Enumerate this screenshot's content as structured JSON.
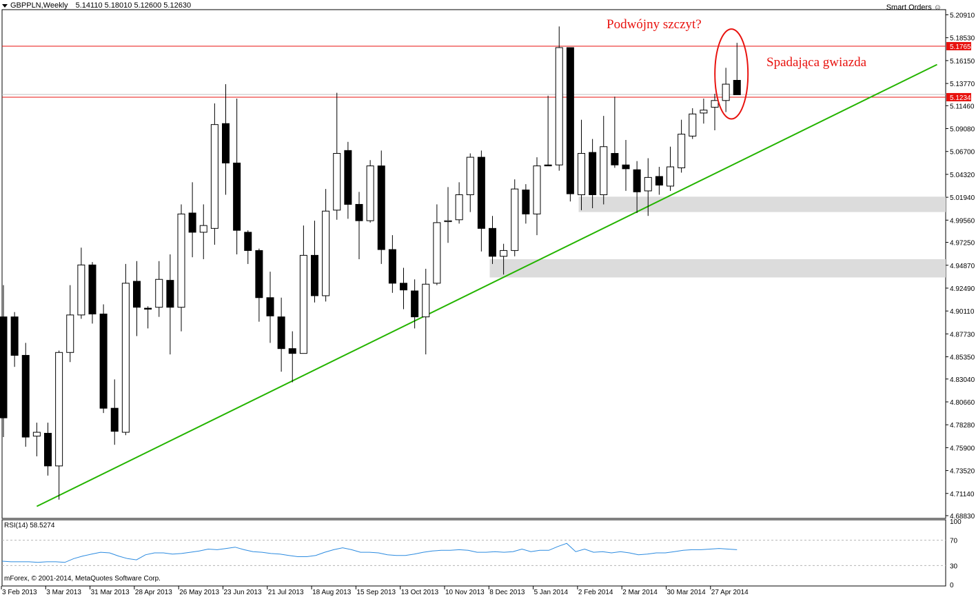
{
  "header": {
    "symbol": "GBPPLN,Weekly",
    "open": "5.14110",
    "high": "5.18010",
    "low": "5.12600",
    "close": "5.12630",
    "smart_orders": "Smart Orders"
  },
  "annotations": {
    "double_top": "Podwójny szczyt?",
    "shooting_star": "Spadająca gwiazda"
  },
  "rsi": {
    "label": "RSI(14) 58.5274",
    "levels": [
      "100",
      "70",
      "30",
      "0"
    ],
    "values": [
      37,
      36,
      36,
      36,
      35,
      36,
      36,
      35,
      41,
      45,
      48,
      51,
      50,
      45,
      41,
      39,
      47,
      50,
      50,
      48,
      49,
      51,
      53,
      56,
      55,
      57,
      59,
      55,
      52,
      51,
      49,
      48,
      46,
      44,
      44,
      46,
      51,
      55,
      58,
      55,
      51,
      51,
      50,
      47,
      46,
      46,
      48,
      51,
      53,
      54,
      54,
      55,
      54,
      51,
      51,
      52,
      51,
      52,
      56,
      52,
      54,
      54,
      60,
      65,
      52,
      56,
      51,
      52,
      50,
      52,
      50,
      47,
      48,
      50,
      50,
      52,
      54,
      55,
      55,
      56,
      57,
      56,
      55
    ]
  },
  "copyright": "mForex, © 2001-2014, MetaQuotes Software Corp.",
  "colors": {
    "bull_candle": "#ffffff",
    "bear_candle": "#000000",
    "trendline": "#24b400",
    "resistance": "#e8120e",
    "zones": "#dcdcdc",
    "rsi_line": "#2a8ae0"
  },
  "chart_data": {
    "type": "candlestick",
    "title": "GBPPLN,Weekly",
    "ylim": [
      4.6883,
      5.2091
    ],
    "y_ticks": [
      "5.20910",
      "5.18530",
      "5.16150",
      "5.13770",
      "5.11460",
      "5.09080",
      "5.06700",
      "5.04320",
      "5.01940",
      "4.99560",
      "4.97250",
      "4.94870",
      "4.92490",
      "4.90110",
      "4.87730",
      "4.85350",
      "4.83040",
      "4.80660",
      "4.78280",
      "4.75900",
      "4.73520",
      "4.71140",
      "4.68830"
    ],
    "x_labels": [
      "3 Feb 2013",
      "3 Mar 2013",
      "31 Mar 2013",
      "28 Apr 2013",
      "26 May 2013",
      "23 Jun 2013",
      "21 Jul 2013",
      "18 Aug 2013",
      "15 Sep 2013",
      "13 Oct 2013",
      "10 Nov 2013",
      "8 Dec 2013",
      "5 Jan 2014",
      "2 Feb 2014",
      "2 Mar 2014",
      "30 Mar 2014",
      "27 Apr 2014"
    ],
    "price_labels": [
      "5.17651",
      "5.12346"
    ],
    "resistance_levels": [
      5.17651,
      5.12346
    ],
    "trendline": [
      {
        "i": 3,
        "y": 4.698
      },
      {
        "i": 84,
        "y": 5.1574
      }
    ],
    "zones": [
      {
        "from_i": 52,
        "y_top": 5.02,
        "y_bottom": 5.004
      },
      {
        "from_i": 44,
        "y_top": 4.955,
        "y_bottom": 4.936
      }
    ],
    "candles": [
      [
        4.895,
        4.79,
        4.928,
        4.77
      ],
      [
        4.895,
        4.855,
        4.9,
        4.843
      ],
      [
        4.855,
        4.77,
        4.868,
        4.76
      ],
      [
        4.771,
        4.775,
        4.785,
        4.75
      ],
      [
        4.774,
        4.74,
        4.785,
        4.73
      ],
      [
        4.74,
        4.858,
        4.86,
        4.705
      ],
      [
        4.858,
        4.897,
        4.928,
        4.848
      ],
      [
        4.897,
        4.949,
        4.967,
        4.893
      ],
      [
        4.949,
        4.898,
        4.952,
        4.888
      ],
      [
        4.898,
        4.8,
        4.908,
        4.795
      ],
      [
        4.8,
        4.776,
        4.83,
        4.762
      ],
      [
        4.775,
        4.93,
        4.95,
        4.772
      ],
      [
        4.932,
        4.905,
        4.953,
        4.875
      ],
      [
        4.904,
        4.903,
        4.906,
        4.883
      ],
      [
        4.905,
        4.934,
        4.953,
        4.895
      ],
      [
        4.933,
        4.905,
        4.96,
        4.856
      ],
      [
        4.905,
        5.002,
        5.012,
        4.88
      ],
      [
        5.003,
        4.983,
        5.035,
        4.957
      ],
      [
        4.983,
        4.99,
        5.012,
        4.955
      ],
      [
        4.987,
        5.095,
        5.117,
        4.97
      ],
      [
        5.096,
        5.055,
        5.137,
        5.022
      ],
      [
        5.055,
        4.985,
        5.122,
        4.96
      ],
      [
        4.983,
        4.964,
        4.985,
        4.95
      ],
      [
        4.964,
        4.915,
        4.966,
        4.89
      ],
      [
        4.915,
        4.896,
        4.942,
        4.868
      ],
      [
        4.895,
        4.862,
        4.915,
        4.838
      ],
      [
        4.862,
        4.857,
        4.88,
        4.827
      ],
      [
        4.857,
        4.959,
        4.99,
        4.857
      ],
      [
        4.959,
        4.917,
        4.995,
        4.91
      ],
      [
        4.917,
        5.005,
        5.028,
        4.911
      ],
      [
        5.006,
        5.065,
        5.128,
        4.996
      ],
      [
        5.068,
        5.012,
        5.077,
        4.997
      ],
      [
        5.012,
        4.995,
        5.025,
        4.955
      ],
      [
        4.995,
        5.052,
        5.058,
        4.993
      ],
      [
        5.052,
        4.965,
        5.068,
        4.95
      ],
      [
        4.965,
        4.93,
        4.98,
        4.92
      ],
      [
        4.93,
        4.923,
        4.946,
        4.903
      ],
      [
        4.922,
        4.895,
        4.934,
        4.883
      ],
      [
        4.895,
        4.929,
        4.945,
        4.856
      ],
      [
        4.93,
        4.993,
        5.012,
        4.928
      ],
      [
        4.994,
        4.995,
        5.03,
        4.972
      ],
      [
        4.996,
        5.022,
        5.035,
        4.992
      ],
      [
        5.022,
        5.061,
        5.065,
        5.004
      ],
      [
        5.061,
        4.987,
        5.068,
        4.963
      ],
      [
        4.987,
        4.958,
        5.0,
        4.95
      ],
      [
        4.958,
        4.964,
        4.971,
        4.939
      ],
      [
        4.964,
        5.028,
        5.038,
        4.958
      ],
      [
        5.027,
        5.002,
        5.033,
        4.992
      ],
      [
        5.002,
        5.052,
        5.061,
        4.98
      ],
      [
        5.053,
        5.052,
        5.125,
        5.052
      ],
      [
        5.053,
        5.175,
        5.197,
        5.047
      ],
      [
        5.175,
        5.023,
        5.175,
        5.015
      ],
      [
        5.022,
        5.065,
        5.1,
        5.006
      ],
      [
        5.066,
        5.022,
        5.08,
        5.008
      ],
      [
        5.022,
        5.072,
        5.104,
        5.012
      ],
      [
        5.065,
        5.053,
        5.124,
        5.05
      ],
      [
        5.053,
        5.049,
        5.079,
        5.026
      ],
      [
        5.048,
        5.025,
        5.057,
        5.003
      ],
      [
        5.026,
        5.04,
        5.06,
        5.0
      ],
      [
        5.041,
        5.032,
        5.051,
        5.022
      ],
      [
        5.031,
        5.051,
        5.072,
        5.026
      ],
      [
        5.05,
        5.085,
        5.1,
        5.045
      ],
      [
        5.083,
        5.106,
        5.112,
        5.08
      ],
      [
        5.107,
        5.11,
        5.122,
        5.096
      ],
      [
        5.113,
        5.12,
        5.127,
        5.089
      ],
      [
        5.12,
        5.137,
        5.154,
        5.108
      ],
      [
        5.141,
        5.126,
        5.18,
        5.126
      ]
    ],
    "candle_slots": [
      0,
      1,
      2,
      3,
      4,
      5,
      6,
      7,
      8,
      9,
      10,
      11,
      12,
      13,
      14,
      15,
      16,
      17,
      18,
      19,
      20,
      21,
      22,
      23,
      24,
      25,
      26,
      27,
      28,
      29,
      30,
      31,
      32,
      33,
      34,
      35,
      36,
      37,
      38,
      39,
      40,
      41,
      42,
      43,
      44,
      45,
      46,
      47,
      48,
      49,
      50,
      51,
      52,
      53,
      54,
      55,
      56,
      57,
      58,
      59,
      60,
      61,
      62,
      63,
      64,
      65,
      66
    ]
  }
}
